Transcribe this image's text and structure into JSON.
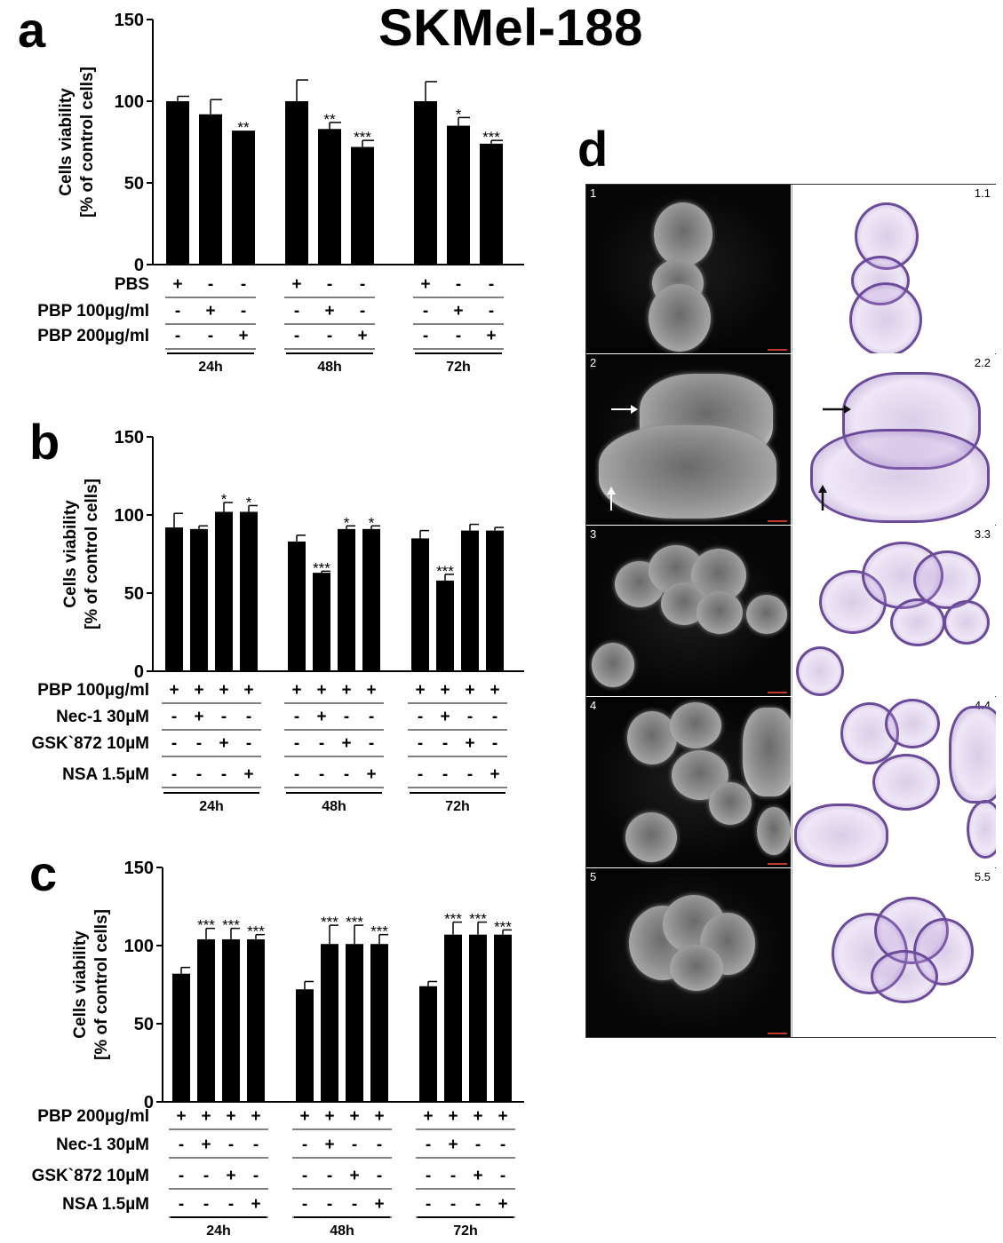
{
  "figure_title": "SKMel-188",
  "panels": {
    "a": {
      "letter": "a"
    },
    "b": {
      "letter": "b"
    },
    "c": {
      "letter": "c"
    },
    "d": {
      "letter": "d",
      "rows": [
        {
          "left_label": "1",
          "right_label": "1.1"
        },
        {
          "left_label": "2",
          "right_label": "2.2"
        },
        {
          "left_label": "3",
          "right_label": "3.3"
        },
        {
          "left_label": "4",
          "right_label": "4.4"
        },
        {
          "left_label": "5",
          "right_label": "5.5"
        }
      ]
    }
  },
  "chart_data": [
    {
      "panel": "a",
      "type": "bar",
      "ylabel_line1": "Cells viability",
      "ylabel_line2": "[% of control cells]",
      "ylim": [
        0,
        150
      ],
      "yticks": [
        0,
        50,
        100,
        150
      ],
      "groups": [
        "24h",
        "48h",
        "72h"
      ],
      "values": [
        [
          100,
          92,
          82
        ],
        [
          100,
          83,
          72
        ],
        [
          100,
          85,
          74
        ]
      ],
      "errors": [
        [
          3,
          9,
          0
        ],
        [
          13,
          4,
          4
        ],
        [
          12,
          5,
          2
        ]
      ],
      "significance": [
        [
          "",
          "",
          "**"
        ],
        [
          "",
          "**",
          "***"
        ],
        [
          "",
          "*",
          "***"
        ]
      ],
      "conditions": [
        {
          "label": "PBS",
          "signs": [
            [
              "+",
              "-",
              "-"
            ],
            [
              "+",
              "-",
              "-"
            ],
            [
              "+",
              "-",
              "-"
            ]
          ]
        },
        {
          "label": "PBP 100µg/ml",
          "signs": [
            [
              "-",
              "+",
              "-"
            ],
            [
              "-",
              "+",
              "-"
            ],
            [
              "-",
              "+",
              "-"
            ]
          ]
        },
        {
          "label": "PBP 200µg/ml",
          "signs": [
            [
              "-",
              "-",
              "+"
            ],
            [
              "-",
              "-",
              "+"
            ],
            [
              "-",
              "-",
              "+"
            ]
          ]
        }
      ]
    },
    {
      "panel": "b",
      "type": "bar",
      "ylabel_line1": "Cells viability",
      "ylabel_line2": "[% of control cells]",
      "ylim": [
        0,
        150
      ],
      "yticks": [
        0,
        50,
        100,
        150
      ],
      "groups": [
        "24h",
        "48h",
        "72h"
      ],
      "values": [
        [
          92,
          91,
          102,
          102
        ],
        [
          83,
          63,
          91,
          91
        ],
        [
          85,
          58,
          90,
          90
        ]
      ],
      "errors": [
        [
          9,
          2,
          6,
          4
        ],
        [
          4,
          1,
          2,
          2
        ],
        [
          5,
          4,
          4,
          2
        ]
      ],
      "significance": [
        [
          "",
          "",
          "*",
          "*"
        ],
        [
          "",
          "***",
          "*",
          "*"
        ],
        [
          "",
          "***",
          "",
          ""
        ]
      ],
      "conditions": [
        {
          "label": "PBP 100µg/ml",
          "signs": [
            [
              "+",
              "+",
              "+",
              "+"
            ],
            [
              "+",
              "+",
              "+",
              "+"
            ],
            [
              "+",
              "+",
              "+",
              "+"
            ]
          ]
        },
        {
          "label": "Nec-1 30µM",
          "signs": [
            [
              "-",
              "+",
              "-",
              "-"
            ],
            [
              "-",
              "+",
              "-",
              "-"
            ],
            [
              "-",
              "+",
              "-",
              "-"
            ]
          ]
        },
        {
          "label": "GSK`872 10µM",
          "signs": [
            [
              "-",
              "-",
              "+",
              "-"
            ],
            [
              "-",
              "-",
              "+",
              "-"
            ],
            [
              "-",
              "-",
              "+",
              "-"
            ]
          ]
        },
        {
          "label": "NSA 1.5µM",
          "signs": [
            [
              "-",
              "-",
              "-",
              "+"
            ],
            [
              "-",
              "-",
              "-",
              "+"
            ],
            [
              "-",
              "-",
              "-",
              "+"
            ]
          ]
        }
      ]
    },
    {
      "panel": "c",
      "type": "bar",
      "ylabel_line1": "Cells viability",
      "ylabel_line2": "[% of control cells]",
      "ylim": [
        0,
        150
      ],
      "yticks": [
        0,
        50,
        100,
        150
      ],
      "groups": [
        "24h",
        "48h",
        "72h"
      ],
      "values": [
        [
          82,
          104,
          104,
          104
        ],
        [
          72,
          101,
          101,
          101
        ],
        [
          74,
          107,
          107,
          107
        ]
      ],
      "errors": [
        [
          4,
          7,
          7,
          3
        ],
        [
          5,
          12,
          12,
          6
        ],
        [
          3,
          8,
          8,
          3
        ]
      ],
      "significance": [
        [
          "",
          "***",
          "***",
          "***"
        ],
        [
          "",
          "***",
          "***",
          "***"
        ],
        [
          "",
          "***",
          "***",
          "***"
        ]
      ],
      "conditions": [
        {
          "label": "PBP 200µg/ml",
          "signs": [
            [
              "+",
              "+",
              "+",
              "+"
            ],
            [
              "+",
              "+",
              "+",
              "+"
            ],
            [
              "+",
              "+",
              "+",
              "+"
            ]
          ]
        },
        {
          "label": "Nec-1 30µM",
          "signs": [
            [
              "-",
              "+",
              "-",
              "-"
            ],
            [
              "-",
              "+",
              "-",
              "-"
            ],
            [
              "-",
              "+",
              "-",
              "-"
            ]
          ]
        },
        {
          "label": "GSK`872 10µM",
          "signs": [
            [
              "-",
              "-",
              "+",
              "-"
            ],
            [
              "-",
              "-",
              "+",
              "-"
            ],
            [
              "-",
              "-",
              "+",
              "-"
            ]
          ]
        },
        {
          "label": "NSA 1.5µM",
          "signs": [
            [
              "-",
              "-",
              "-",
              "+"
            ],
            [
              "-",
              "-",
              "-",
              "+"
            ],
            [
              "-",
              "-",
              "-",
              "+"
            ]
          ]
        }
      ]
    }
  ]
}
